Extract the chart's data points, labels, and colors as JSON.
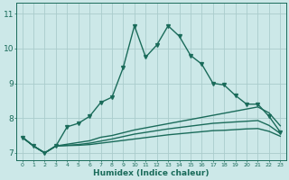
{
  "xlabel": "Humidex (Indice chaleur)",
  "xlim": [
    -0.5,
    23.5
  ],
  "ylim": [
    6.8,
    11.3
  ],
  "yticks": [
    7,
    8,
    9,
    10,
    11
  ],
  "xticks": [
    0,
    1,
    2,
    3,
    4,
    5,
    6,
    7,
    8,
    9,
    10,
    11,
    12,
    13,
    14,
    15,
    16,
    17,
    18,
    19,
    20,
    21,
    22,
    23
  ],
  "bg_color": "#cce8e8",
  "grid_color": "#aacccc",
  "line_color": "#1a6b5a",
  "line1_x": [
    0,
    1,
    2,
    3,
    4,
    5,
    6,
    7,
    8,
    9,
    10,
    11,
    12,
    13,
    14,
    15,
    16,
    17,
    18,
    19,
    20,
    21,
    22,
    23
  ],
  "line1_y": [
    7.45,
    7.2,
    7.0,
    7.2,
    7.75,
    7.85,
    8.05,
    8.45,
    8.6,
    9.45,
    10.65,
    9.75,
    10.1,
    10.65,
    10.35,
    9.8,
    9.55,
    9.0,
    8.95,
    8.65,
    8.4,
    8.4,
    8.05,
    7.6
  ],
  "line2_x": [
    0,
    1,
    2,
    3,
    4,
    5,
    6,
    7,
    8,
    9,
    10,
    11,
    12,
    13,
    14,
    15,
    16,
    17,
    18,
    19,
    20,
    21,
    22,
    23
  ],
  "line2_y": [
    7.45,
    7.2,
    7.0,
    7.2,
    7.25,
    7.3,
    7.35,
    7.45,
    7.5,
    7.58,
    7.66,
    7.72,
    7.78,
    7.84,
    7.9,
    7.96,
    8.02,
    8.08,
    8.14,
    8.2,
    8.26,
    8.32,
    8.15,
    7.78
  ],
  "line3_x": [
    0,
    1,
    2,
    3,
    4,
    5,
    6,
    7,
    8,
    9,
    10,
    11,
    12,
    13,
    14,
    15,
    16,
    17,
    18,
    19,
    20,
    21,
    22,
    23
  ],
  "line3_y": [
    7.45,
    7.2,
    7.0,
    7.2,
    7.22,
    7.24,
    7.28,
    7.34,
    7.4,
    7.47,
    7.54,
    7.59,
    7.64,
    7.69,
    7.73,
    7.77,
    7.81,
    7.85,
    7.87,
    7.89,
    7.91,
    7.93,
    7.79,
    7.56
  ],
  "line4_x": [
    0,
    1,
    2,
    3,
    4,
    5,
    6,
    7,
    8,
    9,
    10,
    11,
    12,
    13,
    14,
    15,
    16,
    17,
    18,
    19,
    20,
    21,
    22,
    23
  ],
  "line4_y": [
    7.45,
    7.2,
    7.0,
    7.2,
    7.21,
    7.22,
    7.24,
    7.28,
    7.32,
    7.36,
    7.4,
    7.44,
    7.48,
    7.52,
    7.55,
    7.58,
    7.61,
    7.64,
    7.65,
    7.67,
    7.69,
    7.7,
    7.62,
    7.48
  ],
  "markersize": 2.8,
  "linewidth": 1.0
}
